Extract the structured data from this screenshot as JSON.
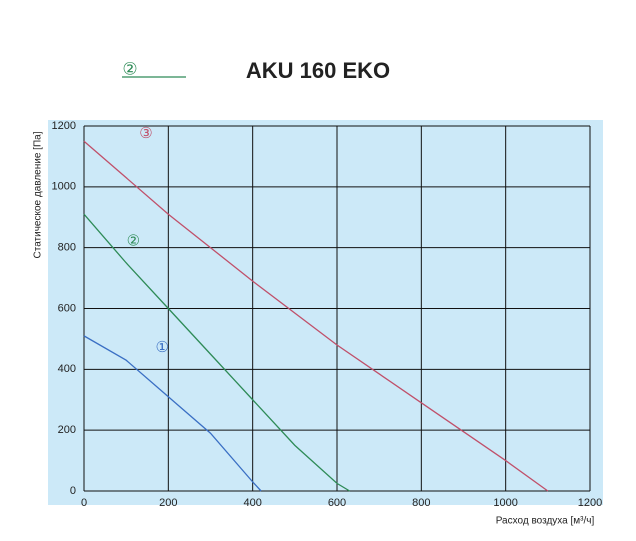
{
  "chart_data": {
    "type": "line",
    "title": "AKU 160 EKO",
    "x_label": "Расход воздуха [м³/ч]",
    "y_label": "Статическое давление [Па]",
    "xlim": [
      0,
      1200
    ],
    "xticks": [
      0,
      200,
      400,
      600,
      800,
      1000,
      1200
    ],
    "ylim": [
      0,
      1200
    ],
    "yticks": [
      0,
      200,
      400,
      600,
      800,
      1000,
      1200
    ],
    "grid": true,
    "legend_series": 1,
    "series": [
      {
        "name": "①",
        "color": "#3a6fc4",
        "x": [
          0,
          100,
          200,
          300,
          400,
          420
        ],
        "values": [
          510,
          430,
          310,
          190,
          30,
          0
        ]
      },
      {
        "name": "②",
        "color": "#2e8b57",
        "x": [
          0,
          100,
          200,
          300,
          400,
          500,
          600,
          630
        ],
        "values": [
          910,
          750,
          600,
          450,
          300,
          150,
          25,
          0
        ]
      },
      {
        "name": "③",
        "color": "#c0506a",
        "x": [
          0,
          200,
          400,
          600,
          800,
          1000,
          1100
        ],
        "values": [
          1150,
          910,
          690,
          480,
          290,
          100,
          0
        ]
      }
    ]
  }
}
